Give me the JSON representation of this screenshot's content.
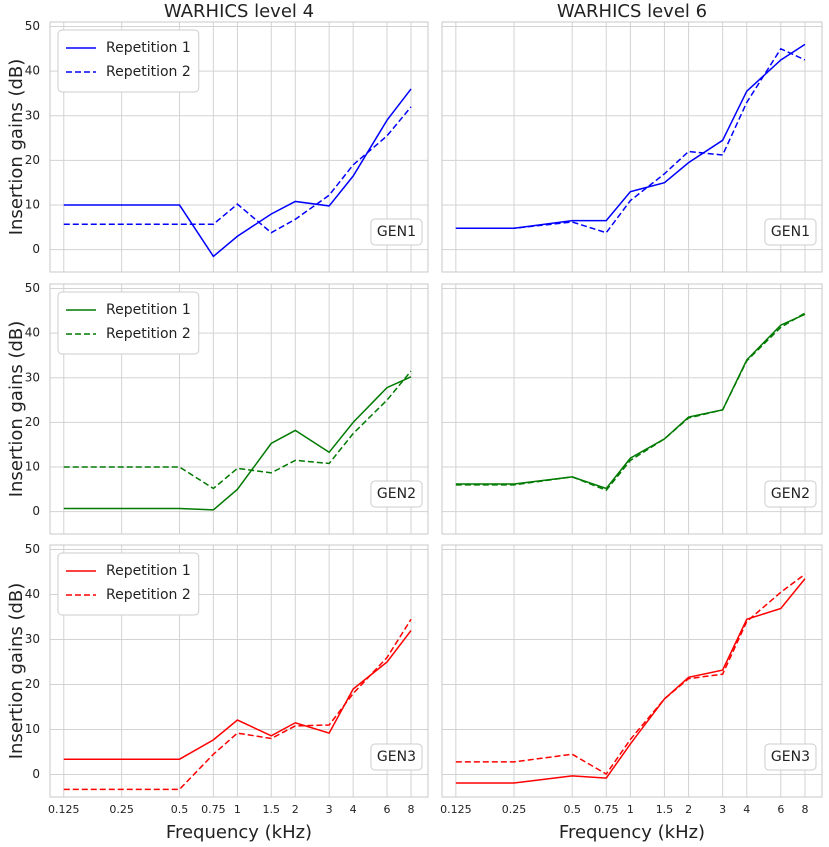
{
  "chart_data": [
    {
      "type": "line",
      "title": "WARHICS level 4",
      "ylabel": "Insertion gains (dB)",
      "annotation": "GEN1",
      "log_x": true,
      "grid": true,
      "legend": "upper left",
      "show_xtick_labels": false,
      "show_ytick_labels": true,
      "x": [
        0.125,
        0.25,
        0.5,
        0.75,
        1,
        1.5,
        2,
        3,
        4,
        6,
        8
      ],
      "xlim": [
        0.106,
        9.8
      ],
      "xticks": [
        0.125,
        0.25,
        0.5,
        0.75,
        1,
        1.5,
        2,
        3,
        4,
        6,
        8
      ],
      "ylim": [
        -5,
        51
      ],
      "yticks": [
        0,
        10,
        20,
        30,
        40,
        50
      ],
      "series": [
        {
          "name": "Repetition 1",
          "color": "#0000ff",
          "linestyle": "solid",
          "values": [
            10,
            10,
            10,
            -1.5,
            3,
            8,
            10.8,
            9.8,
            16.5,
            29,
            36
          ]
        },
        {
          "name": "Repetition 2",
          "color": "#0000ff",
          "linestyle": "dashed",
          "values": [
            5.7,
            5.7,
            5.7,
            5.7,
            10.2,
            3.8,
            6.8,
            12.2,
            19,
            25.5,
            32
          ]
        }
      ]
    },
    {
      "type": "line",
      "title": "WARHICS level 6",
      "annotation": "GEN1",
      "log_x": true,
      "grid": true,
      "show_xtick_labels": false,
      "show_ytick_labels": false,
      "x": [
        0.125,
        0.25,
        0.5,
        0.75,
        1,
        1.5,
        2,
        3,
        4,
        6,
        8
      ],
      "xlim": [
        0.106,
        9.8
      ],
      "xticks": [
        0.125,
        0.25,
        0.5,
        0.75,
        1,
        1.5,
        2,
        3,
        4,
        6,
        8
      ],
      "ylim": [
        -5,
        51
      ],
      "yticks": [
        0,
        10,
        20,
        30,
        40,
        50
      ],
      "series": [
        {
          "color": "#0000ff",
          "linestyle": "solid",
          "values": [
            4.8,
            4.8,
            6.5,
            6.5,
            13,
            15,
            19.5,
            24.5,
            35.5,
            42.5,
            46
          ]
        },
        {
          "color": "#0000ff",
          "linestyle": "dashed",
          "values": [
            4.8,
            4.8,
            6.2,
            3.8,
            11,
            17,
            22,
            21.2,
            33,
            45,
            42.5
          ]
        }
      ]
    },
    {
      "type": "line",
      "ylabel": "Insertion gains (dB)",
      "annotation": "GEN2",
      "log_x": true,
      "grid": true,
      "legend": "upper left",
      "show_xtick_labels": false,
      "show_ytick_labels": true,
      "x": [
        0.125,
        0.25,
        0.5,
        0.75,
        1,
        1.5,
        2,
        3,
        4,
        6,
        8
      ],
      "xlim": [
        0.106,
        9.8
      ],
      "xticks": [
        0.125,
        0.25,
        0.5,
        0.75,
        1,
        1.5,
        2,
        3,
        4,
        6,
        8
      ],
      "ylim": [
        -5,
        51
      ],
      "yticks": [
        0,
        10,
        20,
        30,
        40,
        50
      ],
      "series": [
        {
          "name": "Repetition 1",
          "color": "#007a00",
          "linestyle": "solid",
          "values": [
            0.7,
            0.7,
            0.7,
            0.4,
            5,
            15.3,
            18.2,
            13.3,
            20,
            27.8,
            30.2
          ]
        },
        {
          "name": "Repetition 2",
          "color": "#007a00",
          "linestyle": "dashed",
          "values": [
            10,
            10,
            10,
            5.2,
            9.7,
            8.7,
            11.5,
            10.8,
            17.5,
            25,
            31.5
          ]
        }
      ]
    },
    {
      "type": "line",
      "annotation": "GEN2",
      "log_x": true,
      "grid": true,
      "show_xtick_labels": false,
      "show_ytick_labels": false,
      "x": [
        0.125,
        0.25,
        0.5,
        0.75,
        1,
        1.5,
        2,
        3,
        4,
        6,
        8
      ],
      "xlim": [
        0.106,
        9.8
      ],
      "xticks": [
        0.125,
        0.25,
        0.5,
        0.75,
        1,
        1.5,
        2,
        3,
        4,
        6,
        8
      ],
      "ylim": [
        -5,
        51
      ],
      "yticks": [
        0,
        10,
        20,
        30,
        40,
        50
      ],
      "series": [
        {
          "color": "#007a00",
          "linestyle": "solid",
          "values": [
            6.2,
            6.2,
            7.8,
            5.2,
            12,
            16.3,
            21.2,
            22.8,
            34,
            41.8,
            44.2
          ]
        },
        {
          "color": "#007a00",
          "linestyle": "dashed",
          "values": [
            6,
            6,
            7.8,
            4.8,
            11.5,
            16.3,
            21,
            22.8,
            33.8,
            41.3,
            44.5
          ]
        }
      ]
    },
    {
      "type": "line",
      "ylabel": "Insertion gains (dB)",
      "xlabel": "Frequency (kHz)",
      "annotation": "GEN3",
      "log_x": true,
      "grid": true,
      "legend": "upper left",
      "show_xtick_labels": true,
      "show_ytick_labels": true,
      "x": [
        0.125,
        0.25,
        0.5,
        0.75,
        1,
        1.5,
        2,
        3,
        4,
        6,
        8
      ],
      "xlim": [
        0.106,
        9.8
      ],
      "xticks": [
        0.125,
        0.25,
        0.5,
        0.75,
        1,
        1.5,
        2,
        3,
        4,
        6,
        8
      ],
      "ylim": [
        -5,
        51
      ],
      "yticks": [
        0,
        10,
        20,
        30,
        40,
        50
      ],
      "series": [
        {
          "name": "Repetition 1",
          "color": "#ff0000",
          "linestyle": "solid",
          "values": [
            3.4,
            3.4,
            3.4,
            7.7,
            12.1,
            8.6,
            11.5,
            9.2,
            19,
            25,
            32
          ]
        },
        {
          "name": "Repetition 2",
          "color": "#ff0000",
          "linestyle": "dashed",
          "values": [
            -3.3,
            -3.3,
            -3.3,
            4.5,
            9.2,
            8,
            10.8,
            11,
            18,
            26,
            34.5
          ]
        }
      ]
    },
    {
      "type": "line",
      "xlabel": "Frequency (kHz)",
      "annotation": "GEN3",
      "log_x": true,
      "grid": true,
      "show_xtick_labels": true,
      "show_ytick_labels": false,
      "x": [
        0.125,
        0.25,
        0.5,
        0.75,
        1,
        1.5,
        2,
        3,
        4,
        6,
        8
      ],
      "xlim": [
        0.106,
        9.8
      ],
      "xticks": [
        0.125,
        0.25,
        0.5,
        0.75,
        1,
        1.5,
        2,
        3,
        4,
        6,
        8
      ],
      "ylim": [
        -5,
        51
      ],
      "yticks": [
        0,
        10,
        20,
        30,
        40,
        50
      ],
      "series": [
        {
          "color": "#ff0000",
          "linestyle": "solid",
          "values": [
            -1.9,
            -1.9,
            -0.3,
            -0.8,
            6.8,
            16.8,
            21.6,
            23.2,
            34.5,
            36.9,
            43.5
          ]
        },
        {
          "color": "#ff0000",
          "linestyle": "dashed",
          "values": [
            2.8,
            2.8,
            4.5,
            0.1,
            7.8,
            16.8,
            21.3,
            22.3,
            34,
            40.5,
            44.5
          ]
        }
      ]
    }
  ]
}
